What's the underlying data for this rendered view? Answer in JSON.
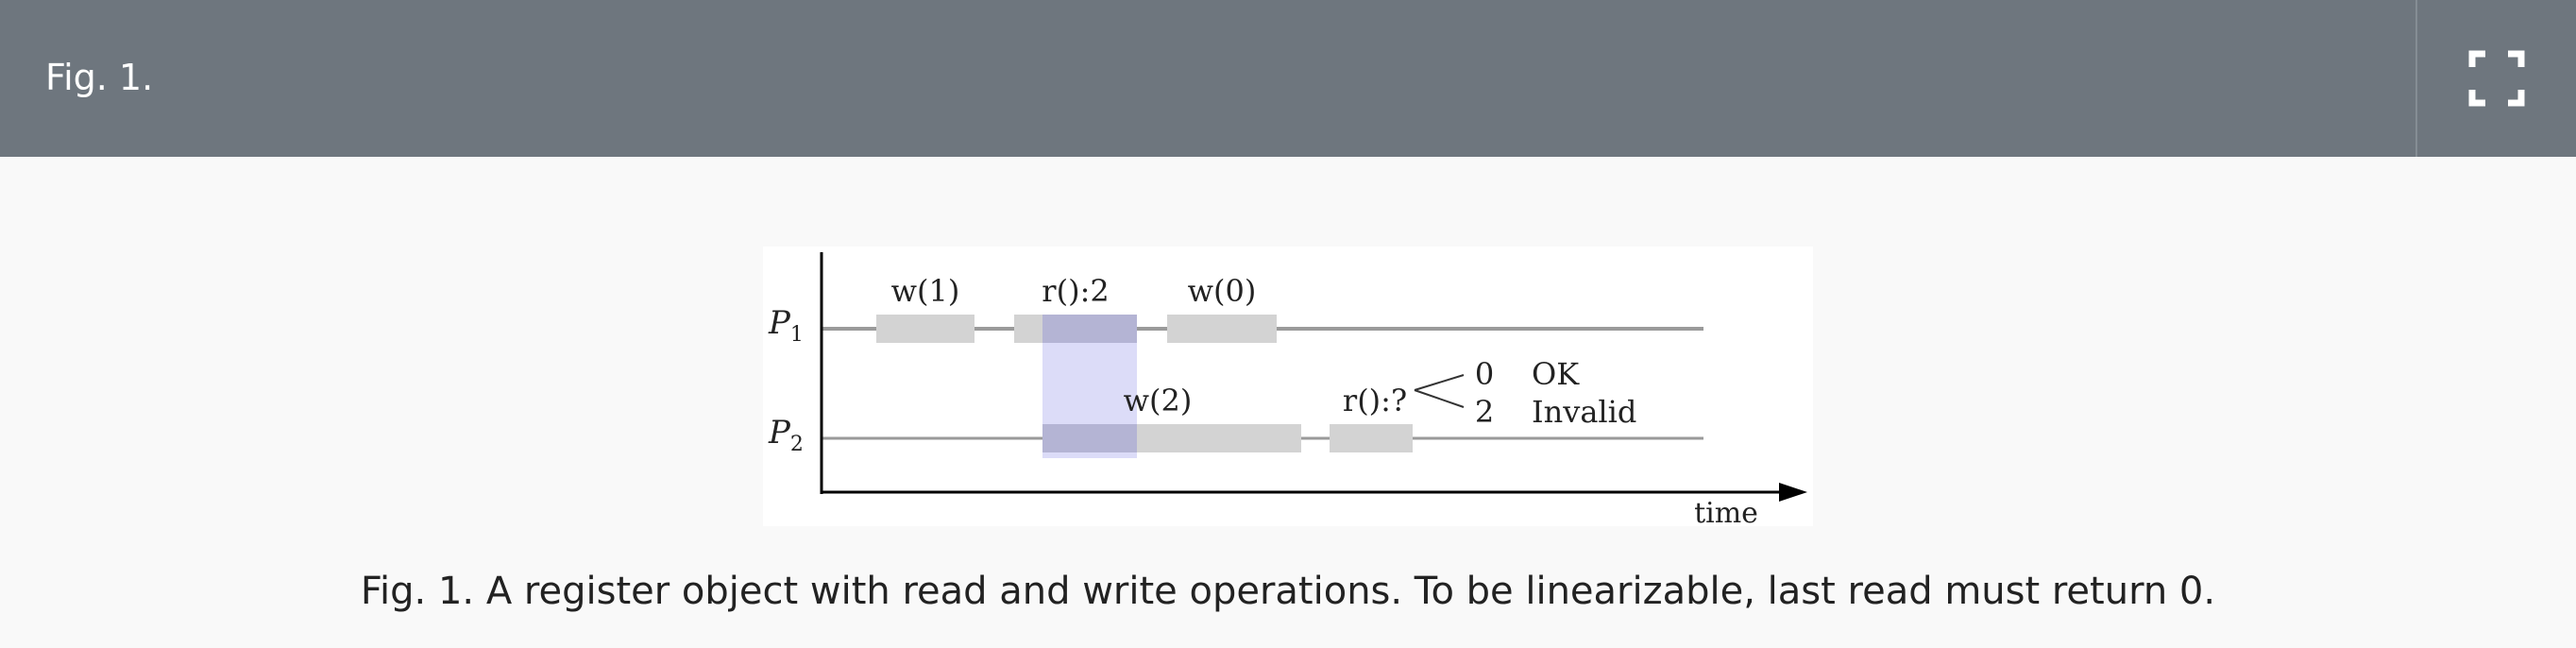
{
  "header": {
    "title": "Fig. 1.",
    "expand_icon": "fullscreen-expand-icon"
  },
  "figure": {
    "process_labels": {
      "p1_letter": "P",
      "p1_sub": "1",
      "p2_letter": "P",
      "p2_sub": "2"
    },
    "op_labels": {
      "w1": "w(1)",
      "r2": "r():2",
      "w0": "w(0)",
      "w2": "w(2)",
      "rq": "r():?"
    },
    "outcomes": [
      {
        "value": "0",
        "label": "OK"
      },
      {
        "value": "2",
        "label": "Invalid"
      }
    ],
    "time_label": "time",
    "colors": {
      "operation_bar": "#d3d3d3",
      "highlight": "#dcdcf8",
      "overlap": "#b4b4d4",
      "timeline": "#9a9a9a",
      "axis": "#000000"
    }
  },
  "caption": {
    "label": "Fig. 1.",
    "text": " A register object with read and write operations. To be linearizable, last read must return 0."
  }
}
